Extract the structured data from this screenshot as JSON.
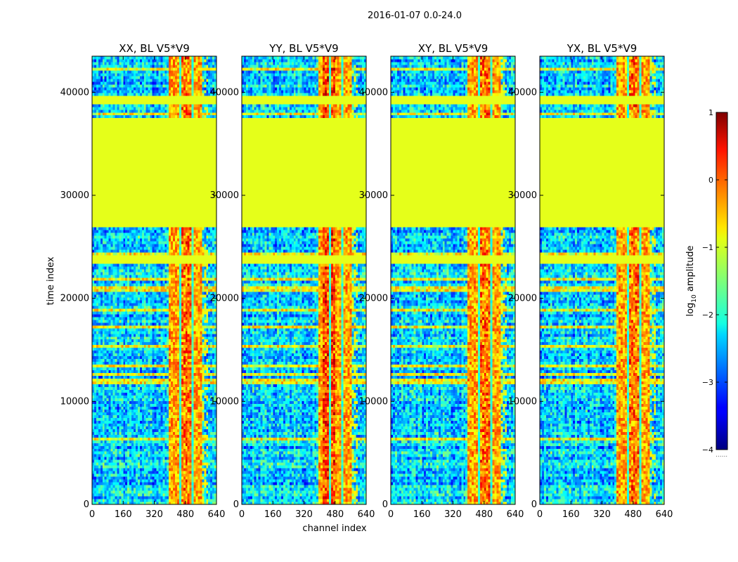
{
  "chart_data": {
    "type": "heatmap",
    "suptitle": "2016-01-07 0.0-24.0",
    "xlabel": "channel index",
    "ylabel": "time index",
    "xlim": [
      0,
      640
    ],
    "ylim": [
      0,
      43500
    ],
    "xticks": [
      "0",
      "160",
      "320",
      "480",
      "640"
    ],
    "yticks": [
      "0",
      "10000",
      "20000",
      "30000",
      "40000"
    ],
    "colormap": "jet",
    "colorbar": {
      "label": "log10 amplitude",
      "label_main": "log",
      "label_sub": "10",
      "label_rest": " amplitude",
      "range": [
        -4,
        1
      ],
      "ticks": [
        "1",
        "0",
        "−1",
        "−2",
        "−3",
        "−4"
      ],
      "footer": "......"
    },
    "flagged_value": -1.0,
    "panels": [
      {
        "title": "XX, BL V5*V9",
        "yy": false,
        "high_band_center": 490
      },
      {
        "title": "YY, BL V5*V9",
        "yy": true,
        "high_band_center": 450
      },
      {
        "title": "XY, BL V5*V9",
        "yy": false,
        "high_band_center": 490
      },
      {
        "title": "YX, BL V5*V9",
        "yy": false,
        "high_band_center": 490
      }
    ],
    "flagged_time_ranges": [
      [
        23500,
        24200
      ],
      [
        27000,
        37500
      ],
      [
        38800,
        39700
      ]
    ],
    "high_channel_range": [
      400,
      560
    ]
  }
}
